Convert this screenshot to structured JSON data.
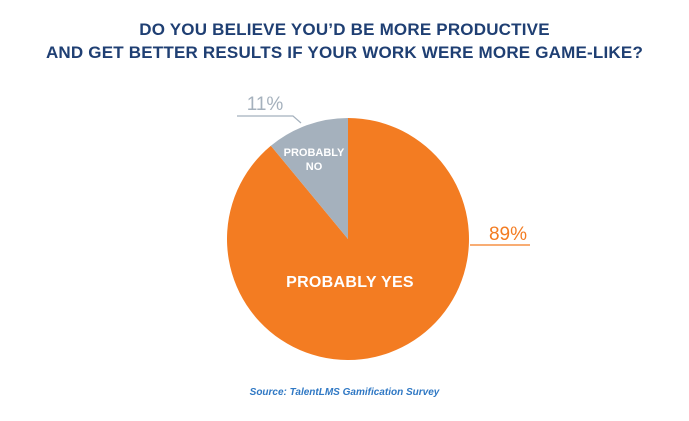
{
  "title": {
    "line1": "DO YOU BELIEVE YOU’D BE MORE PRODUCTIVE",
    "line2": "AND GET BETTER RESULTS IF YOUR WORK WERE MORE GAME-LIKE?"
  },
  "chart_data": {
    "type": "pie",
    "title": "DO YOU BELIEVE YOU’D BE MORE PRODUCTIVE AND GET BETTER RESULTS IF YOUR WORK WERE MORE GAME-LIKE?",
    "slices": [
      {
        "label_lines": [
          "PROBABLY YES"
        ],
        "value": 89,
        "value_label": "89%",
        "color": "#f37c22"
      },
      {
        "label_lines": [
          "PROBABLY",
          "NO"
        ],
        "value": 11,
        "value_label": "11%",
        "color": "#a5b1bd"
      }
    ],
    "start_angle": "12 o'clock, clockwise"
  },
  "colors": {
    "title": "#1f3f73",
    "source": "#2f78c4",
    "yes_label": "#f37c22",
    "no_label": "#a5b1bd"
  },
  "source": "Source: TalentLMS Gamification Survey"
}
